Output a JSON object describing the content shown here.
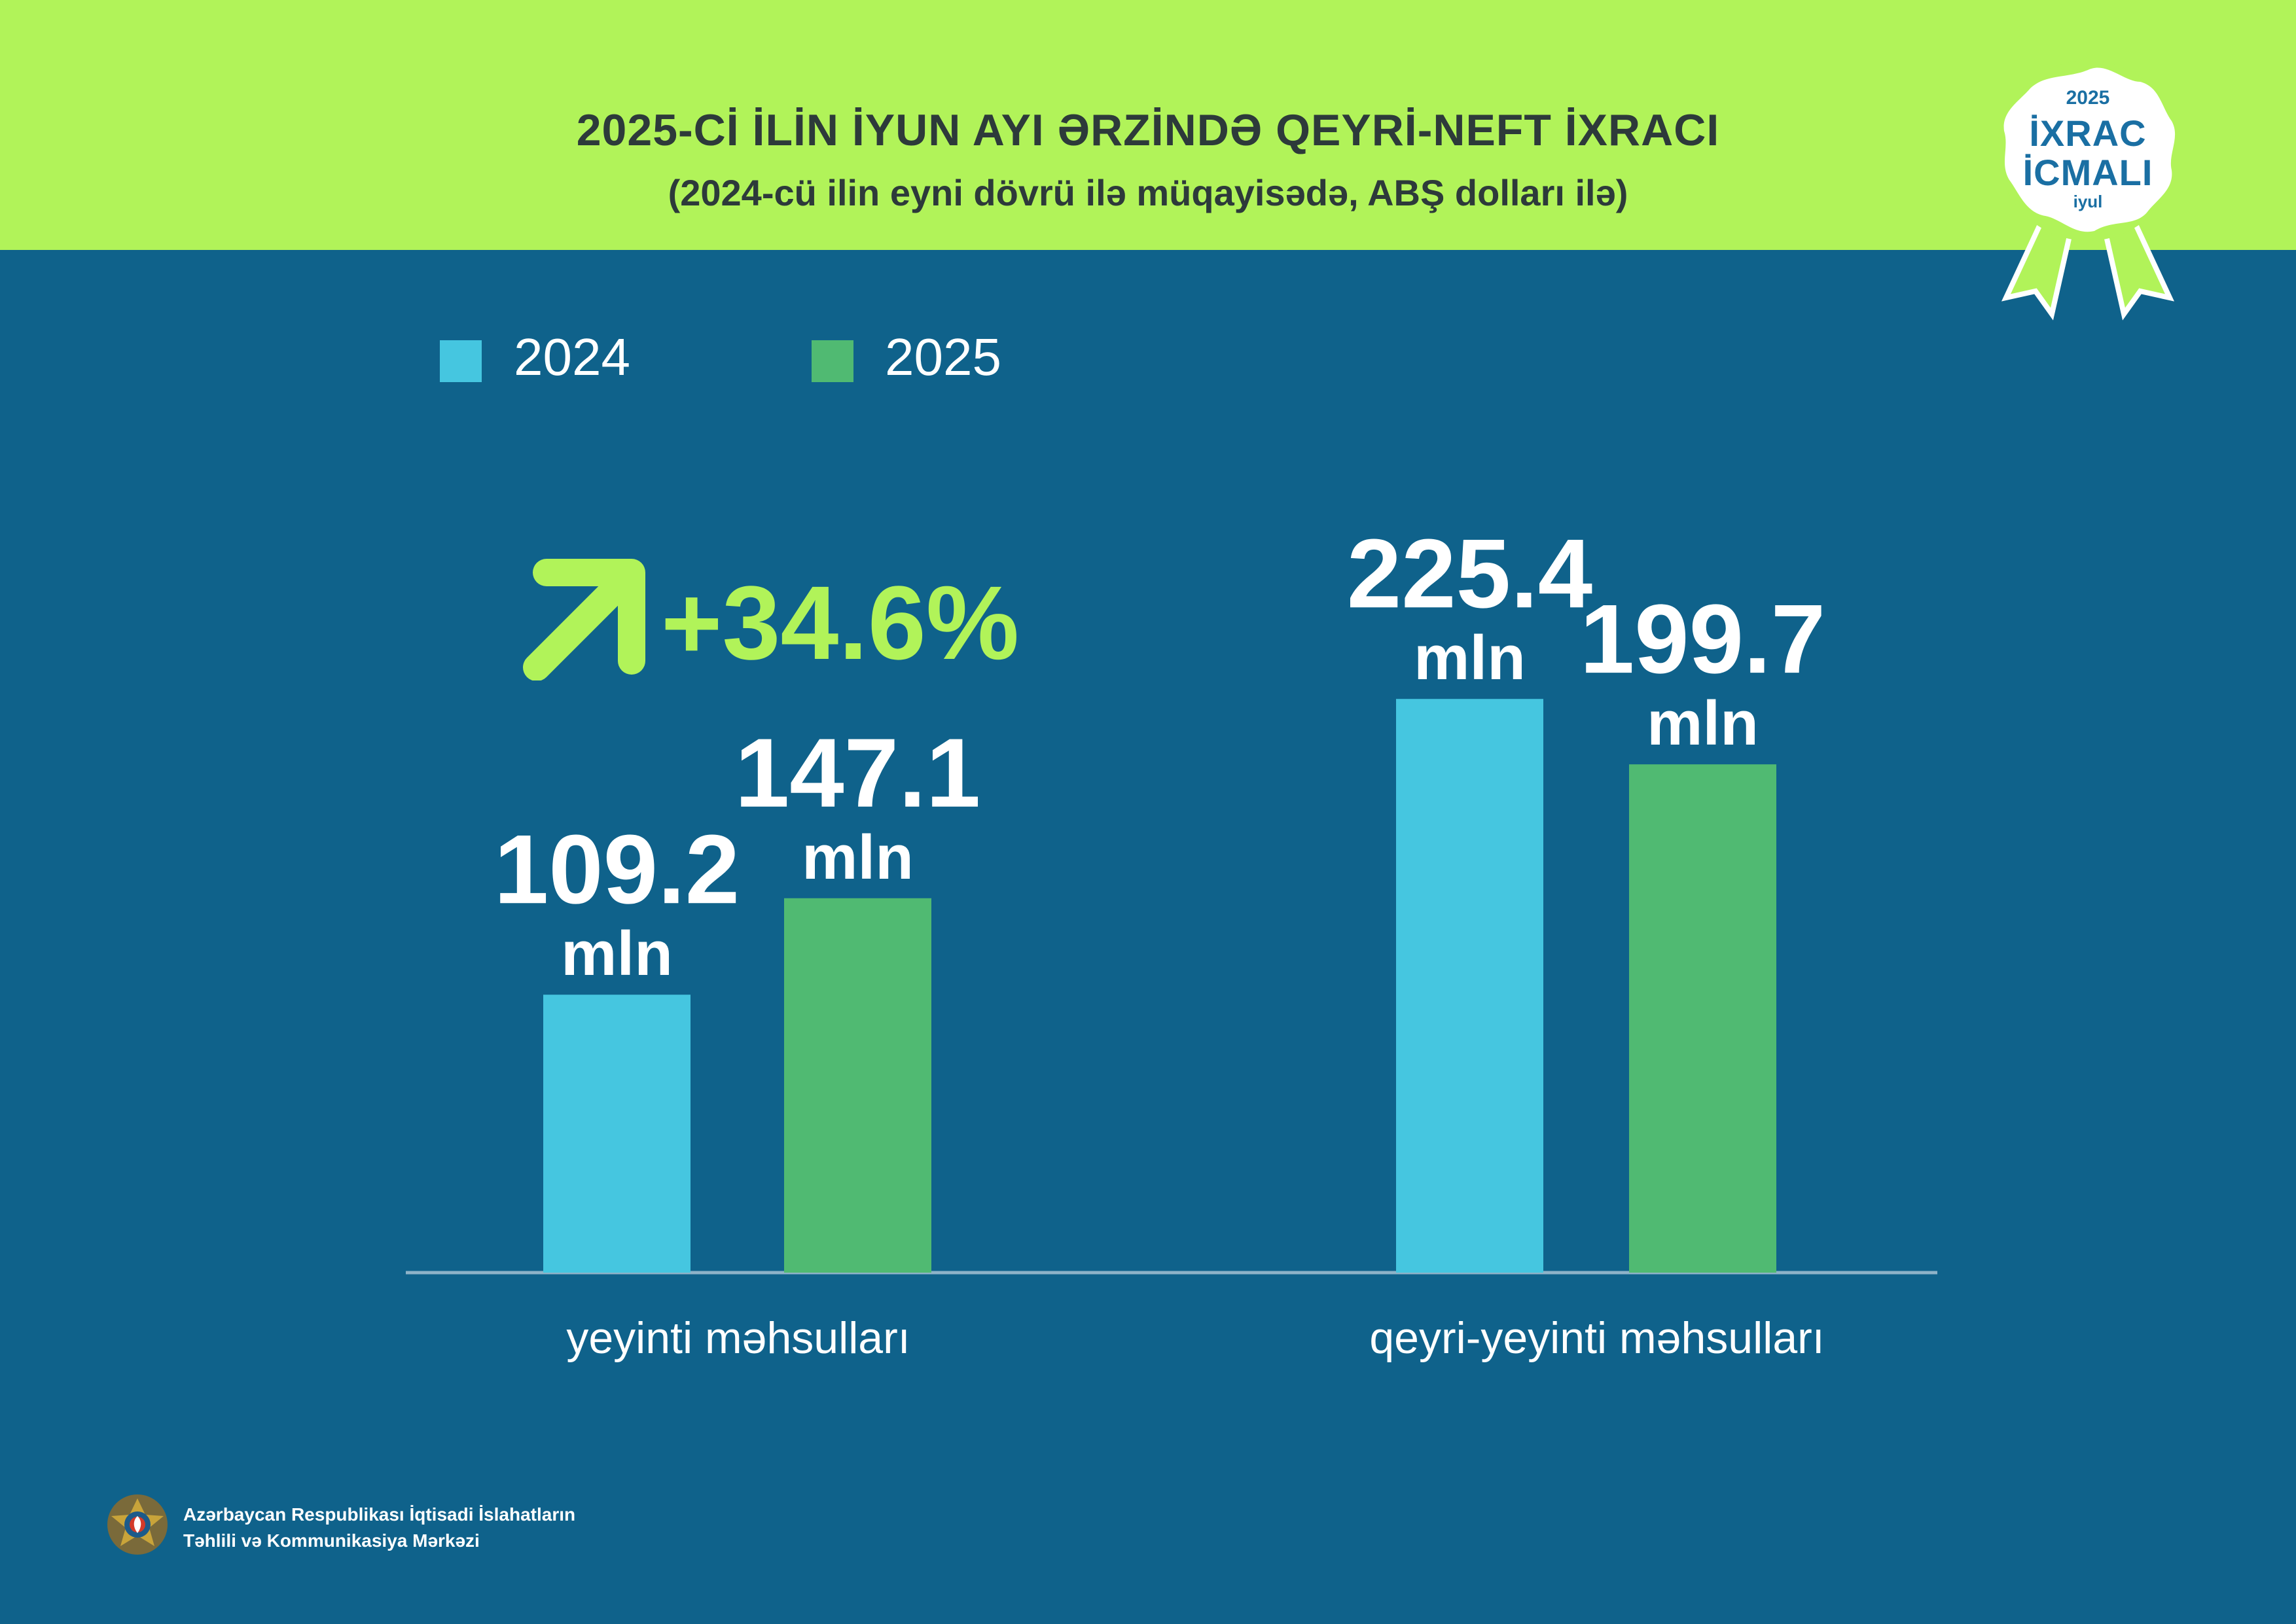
{
  "header": {
    "title": "2025-Cİ İLİN İYUN AYI ƏRZİNDƏ QEYRİ-NEFT İXRACI",
    "subtitle": "(2024-cü ilin eyni dövrü ilə müqayisədə, ABŞ dolları ilə)",
    "background_color": "#b1f359"
  },
  "badge": {
    "year": "2025",
    "line1": "İXRAC",
    "line2": "İCMALI",
    "month": "iyul",
    "icon": "ribbon-badge-icon"
  },
  "change": {
    "label": "+34.6%",
    "icon": "arrow-up-right-icon",
    "color": "#b1f359"
  },
  "footer": {
    "org_line1": "Azərbaycan Respublikası İqtisadi İslahatların",
    "org_line2": "Təhlili və Kommunikasiya Mərkəzi",
    "icon": "emblem-icon"
  },
  "colors": {
    "background": "#0f628b",
    "series_2024": "#45c6e0",
    "series_2025": "#50ba72",
    "axis": "#8fb3c8"
  },
  "chart_data": {
    "type": "bar",
    "title": "",
    "xlabel": "",
    "ylabel": "",
    "categories": [
      "yeyinti məhsulları",
      "qeyri-yeyinti məhsulları"
    ],
    "series": [
      {
        "name": "2024",
        "values": [
          109.2,
          225.4
        ],
        "value_labels": [
          "109.2",
          "225.4"
        ],
        "color": "#45c6e0"
      },
      {
        "name": "2025",
        "values": [
          147.1,
          199.7
        ],
        "value_labels": [
          "147.1",
          "199.7"
        ],
        "color": "#50ba72"
      }
    ],
    "unit_label": "mln",
    "ylim": [
      0,
      300
    ],
    "grid": false,
    "legend_position": "top-left"
  }
}
